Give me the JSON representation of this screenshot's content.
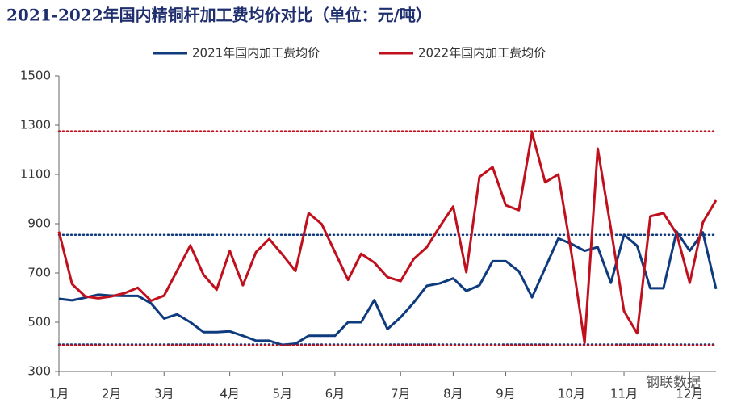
{
  "chart_data": {
    "type": "line",
    "title": "2021-2022年国内精铜杆加工费均价对比（单位：元/吨）",
    "watermark": "钢联数据",
    "categories": [
      "1月",
      null,
      null,
      null,
      "2月",
      null,
      null,
      null,
      "3月",
      null,
      null,
      null,
      null,
      "4月",
      null,
      null,
      null,
      "5月",
      null,
      null,
      null,
      "6月",
      null,
      null,
      null,
      null,
      "7月",
      null,
      null,
      null,
      "8月",
      null,
      null,
      null,
      "9月",
      null,
      null,
      null,
      null,
      "10月",
      null,
      null,
      null,
      "11月",
      null,
      null,
      null,
      null,
      "12月",
      null,
      null
    ],
    "series": [
      {
        "name": "2021年国内加工费均价",
        "color": "#0e3a7e",
        "values": [
          595,
          589,
          600,
          612,
          608,
          607,
          607,
          577,
          515,
          532,
          500,
          460,
          460,
          463,
          445,
          425,
          425,
          408,
          413,
          445,
          445,
          445,
          500,
          500,
          590,
          472,
          520,
          580,
          648,
          658,
          678,
          627,
          650,
          748,
          748,
          707,
          601,
          720,
          840,
          818,
          790,
          805,
          660,
          855,
          810,
          638,
          638,
          868,
          790,
          865,
          635
        ],
        "reference_lines": [
          855,
          410
        ]
      },
      {
        "name": "2022年国内加工费均价",
        "color": "#c0101e",
        "values": [
          868,
          655,
          605,
          597,
          605,
          618,
          640,
          587,
          608,
          710,
          812,
          693,
          632,
          790,
          650,
          785,
          838,
          775,
          708,
          943,
          898,
          785,
          672,
          778,
          742,
          683,
          667,
          757,
          805,
          890,
          970,
          703,
          1090,
          1130,
          975,
          955,
          1270,
          1068,
          1100,
          780,
          416,
          1205,
          880,
          545,
          455,
          930,
          943,
          860,
          660,
          905,
          995
        ],
        "reference_lines": [
          1275,
          406
        ]
      }
    ],
    "ylim": [
      300,
      1500
    ],
    "yticks": [
      300,
      500,
      700,
      900,
      1100,
      1300,
      1500
    ]
  }
}
